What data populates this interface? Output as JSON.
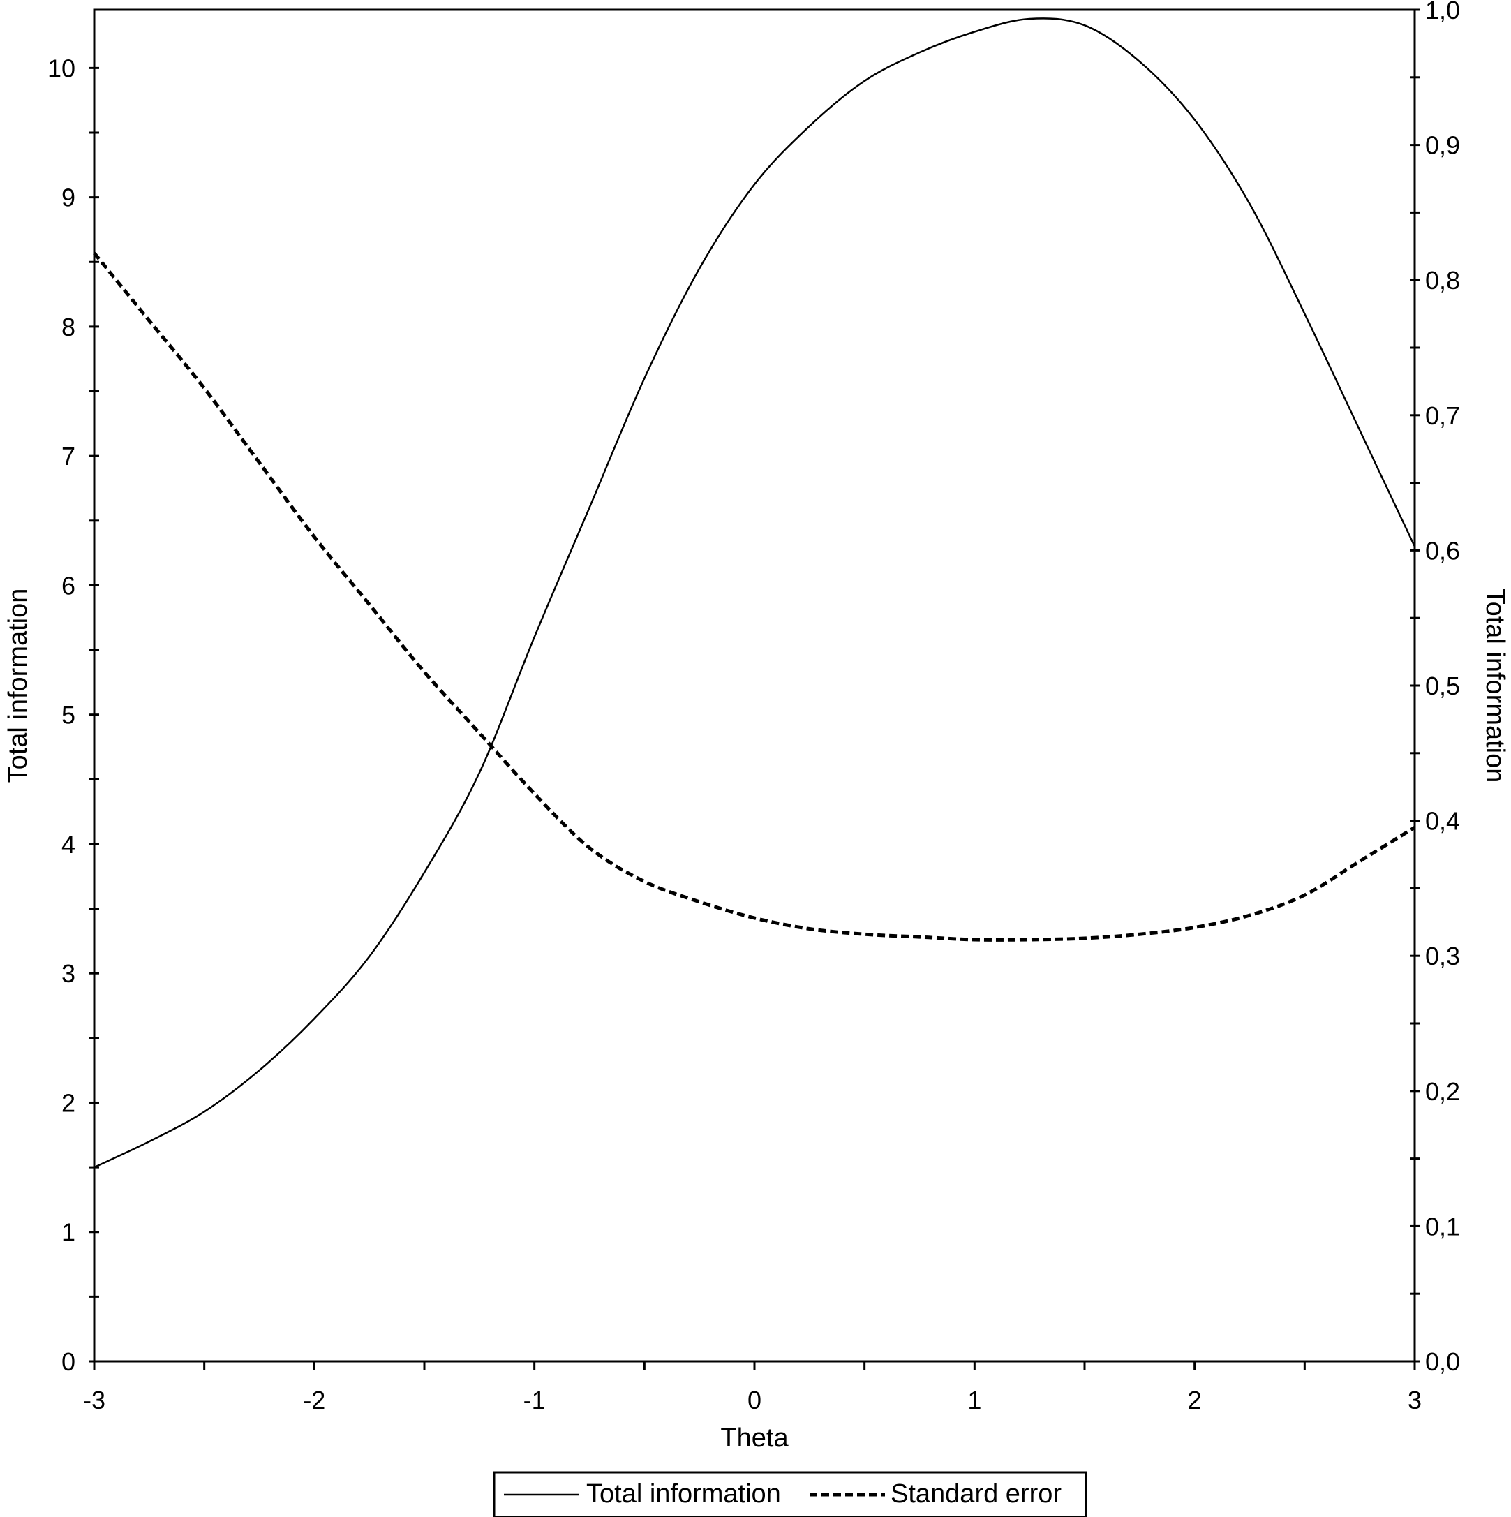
{
  "chart_data": {
    "type": "line",
    "title": "",
    "xlabel": "Theta",
    "ylabel_left": "Total information",
    "ylabel_right": "Total information",
    "xlim": [
      -3,
      3
    ],
    "ylim_left": [
      0,
      10.45
    ],
    "ylim_right": [
      0,
      1.0
    ],
    "x_ticks": [
      "-3",
      "-2",
      "-1",
      "0",
      "1",
      "2",
      "3"
    ],
    "y_left_ticks": [
      "0",
      "1",
      "2",
      "3",
      "4",
      "5",
      "6",
      "7",
      "8",
      "9",
      "10"
    ],
    "y_right_ticks": [
      "0,0",
      "0,1",
      "0,2",
      "0,3",
      "0,4",
      "0,5",
      "0,6",
      "0,7",
      "0,8",
      "0,9",
      "1,0"
    ],
    "grid": false,
    "legend_position": "bottom-center",
    "series": [
      {
        "name": "Total information",
        "axis": "left",
        "style": "solid",
        "color": "#000000",
        "x": [
          -3,
          -2.75,
          -2.5,
          -2.25,
          -2,
          -1.75,
          -1.5,
          -1.25,
          -1,
          -0.75,
          -0.5,
          -0.25,
          0,
          0.25,
          0.5,
          0.75,
          1,
          1.25,
          1.5,
          1.75,
          2,
          2.25,
          2.5,
          2.75,
          3
        ],
        "values": [
          1.5,
          1.7,
          1.93,
          2.25,
          2.65,
          3.13,
          3.78,
          4.55,
          5.6,
          6.6,
          7.6,
          8.45,
          9.1,
          9.55,
          9.9,
          10.12,
          10.28,
          10.38,
          10.33,
          10.05,
          9.6,
          8.95,
          8.1,
          7.2,
          6.3
        ]
      },
      {
        "name": "Standard error",
        "axis": "right",
        "style": "dashed",
        "color": "#000000",
        "x": [
          -3,
          -2.75,
          -2.5,
          -2.25,
          -2,
          -1.75,
          -1.5,
          -1.25,
          -1,
          -0.75,
          -0.5,
          -0.25,
          0,
          0.25,
          0.5,
          0.75,
          1,
          1.25,
          1.5,
          1.75,
          2,
          2.25,
          2.5,
          2.75,
          3
        ],
        "values": [
          0.82,
          0.77,
          0.72,
          0.665,
          0.61,
          0.56,
          0.51,
          0.465,
          0.42,
          0.38,
          0.355,
          0.34,
          0.328,
          0.32,
          0.316,
          0.314,
          0.312,
          0.312,
          0.313,
          0.316,
          0.321,
          0.33,
          0.345,
          0.37,
          0.395
        ]
      }
    ]
  }
}
